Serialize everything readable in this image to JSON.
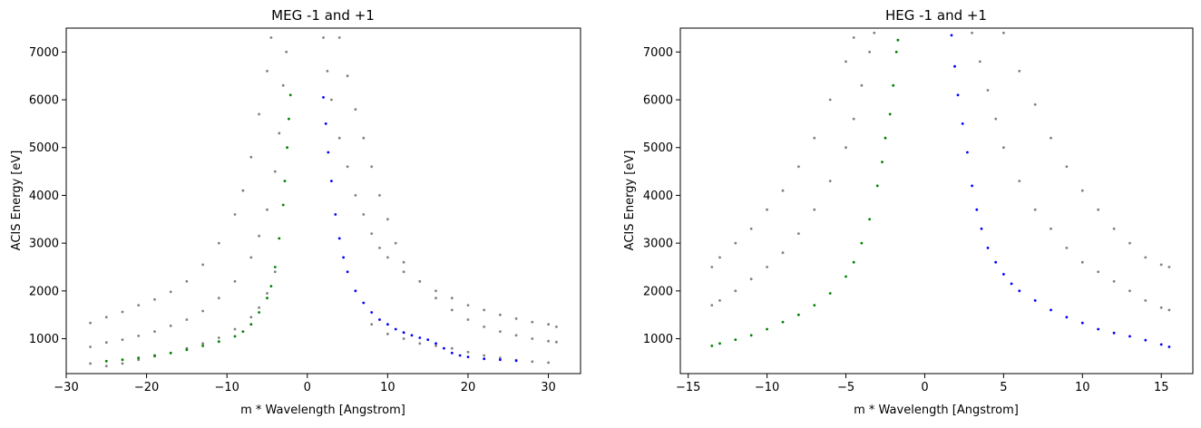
{
  "chart_data": [
    {
      "type": "scatter",
      "title": "MEG -1 and +1",
      "xlabel": "m * Wavelength [Angstrom]",
      "ylabel": "ACIS Energy [eV]",
      "xlim": [
        -30,
        34
      ],
      "ylim": [
        270,
        7500
      ],
      "xticks": [
        -30,
        -20,
        -10,
        0,
        10,
        20,
        30
      ],
      "yticks": [
        1000,
        2000,
        3000,
        4000,
        5000,
        6000,
        7000
      ],
      "series": [
        {
          "color": "#808080",
          "points": [
            [
              -27,
              1330
            ],
            [
              -25,
              1450
            ],
            [
              -23,
              1560
            ],
            [
              -21,
              1700
            ],
            [
              -19,
              1820
            ],
            [
              -17,
              1980
            ],
            [
              -15,
              2200
            ],
            [
              -13,
              2550
            ],
            [
              -11,
              3000
            ],
            [
              -9,
              3600
            ],
            [
              -8,
              4100
            ],
            [
              -7,
              4800
            ],
            [
              -6,
              5700
            ],
            [
              -5,
              6600
            ],
            [
              -4.5,
              7300
            ],
            [
              -27,
              830
            ],
            [
              -25,
              920
            ],
            [
              -23,
              980
            ],
            [
              -21,
              1060
            ],
            [
              -19,
              1150
            ],
            [
              -17,
              1270
            ],
            [
              -15,
              1400
            ],
            [
              -13,
              1580
            ],
            [
              -11,
              1850
            ],
            [
              -9,
              2200
            ],
            [
              -7,
              2700
            ],
            [
              -6,
              3150
            ],
            [
              -5,
              3700
            ],
            [
              -4,
              4500
            ],
            [
              -3.5,
              5300
            ],
            [
              -3,
              6300
            ],
            [
              -2.6,
              7000
            ],
            [
              -27,
              480
            ],
            [
              -25,
              430
            ],
            [
              -23,
              480
            ],
            [
              -21,
              560
            ],
            [
              -19,
              630
            ],
            [
              -17,
              700
            ],
            [
              -15,
              800
            ],
            [
              -13,
              900
            ],
            [
              -11,
              1020
            ],
            [
              -9,
              1200
            ],
            [
              -7,
              1450
            ],
            [
              -6,
              1650
            ],
            [
              -5,
              1950
            ],
            [
              -4,
              2400
            ],
            [
              2,
              7300
            ],
            [
              2.5,
              6600
            ],
            [
              3,
              6000
            ],
            [
              4,
              5200
            ],
            [
              5,
              4600
            ],
            [
              6,
              4000
            ],
            [
              7,
              3600
            ],
            [
              8,
              3200
            ],
            [
              9,
              2900
            ],
            [
              10,
              2700
            ],
            [
              12,
              2400
            ],
            [
              14,
              2200
            ],
            [
              16,
              2000
            ],
            [
              18,
              1850
            ],
            [
              20,
              1700
            ],
            [
              22,
              1600
            ],
            [
              24,
              1500
            ],
            [
              26,
              1420
            ],
            [
              28,
              1350
            ],
            [
              30,
              1300
            ],
            [
              31,
              1250
            ],
            [
              4,
              7300
            ],
            [
              5,
              6500
            ],
            [
              6,
              5800
            ],
            [
              7,
              5200
            ],
            [
              8,
              4600
            ],
            [
              9,
              4000
            ],
            [
              10,
              3500
            ],
            [
              11,
              3000
            ],
            [
              12,
              2600
            ],
            [
              14,
              2200
            ],
            [
              16,
              1850
            ],
            [
              18,
              1600
            ],
            [
              20,
              1400
            ],
            [
              22,
              1250
            ],
            [
              24,
              1150
            ],
            [
              26,
              1070
            ],
            [
              28,
              1000
            ],
            [
              30,
              950
            ],
            [
              31,
              930
            ],
            [
              8,
              1300
            ],
            [
              10,
              1100
            ],
            [
              12,
              1000
            ],
            [
              14,
              900
            ],
            [
              16,
              850
            ],
            [
              18,
              800
            ],
            [
              20,
              720
            ],
            [
              22,
              650
            ],
            [
              24,
              600
            ],
            [
              26,
              550
            ],
            [
              28,
              520
            ],
            [
              30,
              500
            ]
          ]
        },
        {
          "color": "#008000",
          "points": [
            [
              -25,
              530
            ],
            [
              -23,
              560
            ],
            [
              -21,
              600
            ],
            [
              -19,
              650
            ],
            [
              -17,
              700
            ],
            [
              -15,
              770
            ],
            [
              -13,
              850
            ],
            [
              -11,
              940
            ],
            [
              -9,
              1050
            ],
            [
              -8,
              1150
            ],
            [
              -7,
              1300
            ],
            [
              -6,
              1550
            ],
            [
              -5,
              1850
            ],
            [
              -4.5,
              2100
            ],
            [
              -4,
              2500
            ],
            [
              -3.5,
              3100
            ],
            [
              -3,
              3800
            ],
            [
              -2.8,
              4300
            ],
            [
              -2.5,
              5000
            ],
            [
              -2.3,
              5600
            ],
            [
              -2.1,
              6100
            ]
          ]
        },
        {
          "color": "#0000ff",
          "points": [
            [
              2,
              6050
            ],
            [
              2.3,
              5500
            ],
            [
              2.6,
              4900
            ],
            [
              3,
              4300
            ],
            [
              3.5,
              3600
            ],
            [
              4,
              3100
            ],
            [
              4.5,
              2700
            ],
            [
              5,
              2400
            ],
            [
              6,
              2000
            ],
            [
              7,
              1750
            ],
            [
              8,
              1550
            ],
            [
              9,
              1400
            ],
            [
              10,
              1300
            ],
            [
              11,
              1200
            ],
            [
              12,
              1130
            ],
            [
              13,
              1070
            ],
            [
              14,
              1020
            ],
            [
              15,
              980
            ],
            [
              16,
              900
            ],
            [
              17,
              800
            ],
            [
              18,
              700
            ],
            [
              19,
              650
            ],
            [
              20,
              620
            ],
            [
              22,
              580
            ],
            [
              24,
              560
            ],
            [
              26,
              540
            ]
          ]
        }
      ]
    },
    {
      "type": "scatter",
      "title": "HEG -1 and +1",
      "xlabel": "m * Wavelength [Angstrom]",
      "ylabel": "ACIS Energy [eV]",
      "xlim": [
        -15.5,
        17
      ],
      "ylim": [
        270,
        7500
      ],
      "xticks": [
        -15,
        -10,
        -5,
        0,
        5,
        10,
        15
      ],
      "yticks": [
        1000,
        2000,
        3000,
        4000,
        5000,
        6000,
        7000
      ],
      "series": [
        {
          "color": "#808080",
          "points": [
            [
              -13.5,
              1700
            ],
            [
              -13,
              1800
            ],
            [
              -12,
              2000
            ],
            [
              -11,
              2250
            ],
            [
              -10,
              2500
            ],
            [
              -9,
              2800
            ],
            [
              -8,
              3200
            ],
            [
              -7,
              3700
            ],
            [
              -6,
              4300
            ],
            [
              -5,
              5000
            ],
            [
              -4.5,
              5600
            ],
            [
              -4,
              6300
            ],
            [
              -3.5,
              7000
            ],
            [
              -3.2,
              7400
            ],
            [
              -13.5,
              2500
            ],
            [
              -13,
              2700
            ],
            [
              -12,
              3000
            ],
            [
              -11,
              3300
            ],
            [
              -10,
              3700
            ],
            [
              -9,
              4100
            ],
            [
              -8,
              4600
            ],
            [
              -7,
              5200
            ],
            [
              -6,
              6000
            ],
            [
              -5,
              6800
            ],
            [
              -4.5,
              7300
            ],
            [
              3,
              7400
            ],
            [
              3.5,
              6800
            ],
            [
              4,
              6200
            ],
            [
              4.5,
              5600
            ],
            [
              5,
              5000
            ],
            [
              6,
              4300
            ],
            [
              7,
              3700
            ],
            [
              8,
              3300
            ],
            [
              9,
              2900
            ],
            [
              10,
              2600
            ],
            [
              11,
              2400
            ],
            [
              12,
              2200
            ],
            [
              13,
              2000
            ],
            [
              14,
              1800
            ],
            [
              15,
              1650
            ],
            [
              15.5,
              1600
            ],
            [
              5,
              7400
            ],
            [
              6,
              6600
            ],
            [
              7,
              5900
            ],
            [
              8,
              5200
            ],
            [
              9,
              4600
            ],
            [
              10,
              4100
            ],
            [
              11,
              3700
            ],
            [
              12,
              3300
            ],
            [
              13,
              3000
            ],
            [
              14,
              2700
            ],
            [
              15,
              2550
            ],
            [
              15.5,
              2500
            ]
          ]
        },
        {
          "color": "#008000",
          "points": [
            [
              -13.5,
              850
            ],
            [
              -13,
              900
            ],
            [
              -12,
              980
            ],
            [
              -11,
              1070
            ],
            [
              -10,
              1200
            ],
            [
              -9,
              1350
            ],
            [
              -8,
              1500
            ],
            [
              -7,
              1700
            ],
            [
              -6,
              1950
            ],
            [
              -5,
              2300
            ],
            [
              -4.5,
              2600
            ],
            [
              -4,
              3000
            ],
            [
              -3.5,
              3500
            ],
            [
              -3,
              4200
            ],
            [
              -2.7,
              4700
            ],
            [
              -2.5,
              5200
            ],
            [
              -2.2,
              5700
            ],
            [
              -2,
              6300
            ],
            [
              -1.8,
              7000
            ],
            [
              -1.7,
              7250
            ]
          ]
        },
        {
          "color": "#0000ff",
          "points": [
            [
              1.7,
              7350
            ],
            [
              1.9,
              6700
            ],
            [
              2.1,
              6100
            ],
            [
              2.4,
              5500
            ],
            [
              2.7,
              4900
            ],
            [
              3,
              4200
            ],
            [
              3.3,
              3700
            ],
            [
              3.6,
              3300
            ],
            [
              4,
              2900
            ],
            [
              4.5,
              2600
            ],
            [
              5,
              2350
            ],
            [
              5.5,
              2150
            ],
            [
              6,
              2000
            ],
            [
              7,
              1800
            ],
            [
              8,
              1600
            ],
            [
              9,
              1450
            ],
            [
              10,
              1330
            ],
            [
              11,
              1200
            ],
            [
              12,
              1120
            ],
            [
              13,
              1050
            ],
            [
              14,
              970
            ],
            [
              15,
              880
            ],
            [
              15.5,
              830
            ]
          ]
        }
      ]
    }
  ]
}
